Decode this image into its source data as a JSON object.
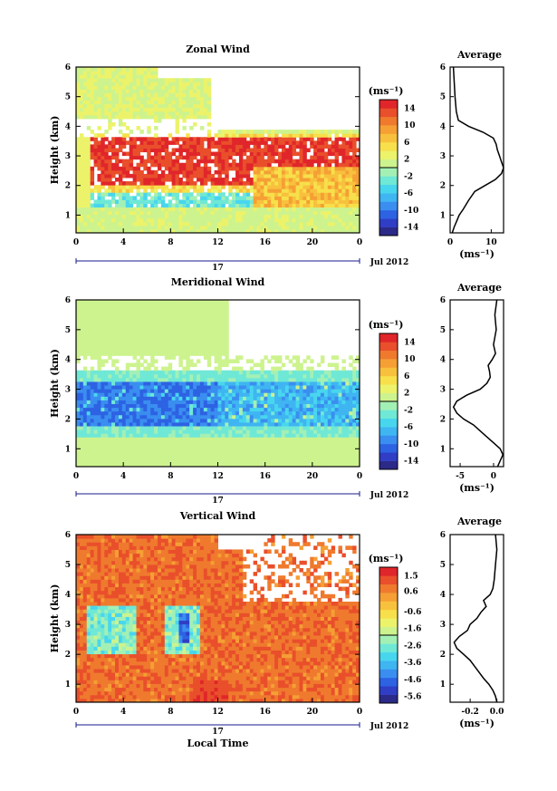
{
  "chart_data": [
    {
      "type": "heatmap",
      "title": "Zonal Wind",
      "ylabel": "Height (km)",
      "xlim": [
        0,
        24
      ],
      "ylim": [
        0.4,
        6.0
      ],
      "x_ticks": [
        "0",
        "4",
        "8",
        "12",
        "16",
        "20",
        "0"
      ],
      "y_ticks": [
        "1",
        "2",
        "3",
        "4",
        "5",
        "6"
      ],
      "day_label": "17",
      "date_label": "Jul 2012",
      "colorbar": {
        "unit": "(ms⁻¹)",
        "range": [
          -16,
          16
        ],
        "tick_labels": [
          "14",
          "10",
          "6",
          "2",
          "-2",
          "-6",
          "-10",
          "-14"
        ],
        "tick_values": [
          14,
          10,
          6,
          2,
          -2,
          -6,
          -10,
          -14
        ]
      },
      "profile": {
        "title": "Average",
        "xlabel": "(ms⁻¹)",
        "xlim": [
          0,
          13
        ],
        "x_ticks": [
          "0",
          "10"
        ],
        "x_tick_values": [
          0,
          10
        ],
        "height_km": [
          0.4,
          0.6,
          0.8,
          1.0,
          1.2,
          1.5,
          1.8,
          2.0,
          2.2,
          2.4,
          2.6,
          2.8,
          3.0,
          3.2,
          3.4,
          3.6,
          3.8,
          4.0,
          4.2,
          4.5,
          5.0,
          5.5,
          6.0
        ],
        "values": [
          0.5,
          1.0,
          1.6,
          2.2,
          3.2,
          4.5,
          6.0,
          8.5,
          11.0,
          12.5,
          13.0,
          12.5,
          12.0,
          11.5,
          11.2,
          10.5,
          8.0,
          4.5,
          2.0,
          1.5,
          1.2,
          1.0,
          0.8
        ]
      }
    },
    {
      "type": "heatmap",
      "title": "Meridional Wind",
      "ylabel": "Height (km)",
      "xlim": [
        0,
        24
      ],
      "ylim": [
        0.4,
        6.0
      ],
      "x_ticks": [
        "0",
        "4",
        "8",
        "12",
        "16",
        "20",
        "0"
      ],
      "y_ticks": [
        "1",
        "2",
        "3",
        "4",
        "5",
        "6"
      ],
      "day_label": "17",
      "date_label": "Jul 2012",
      "colorbar": {
        "unit": "(ms⁻¹)",
        "range": [
          -16,
          16
        ],
        "tick_labels": [
          "14",
          "10",
          "6",
          "2",
          "-2",
          "-6",
          "-10",
          "-14"
        ],
        "tick_values": [
          14,
          10,
          6,
          2,
          -2,
          -6,
          -10,
          -14
        ]
      },
      "profile": {
        "title": "Average",
        "xlabel": "(ms⁻¹)",
        "xlim": [
          -6.5,
          1.5
        ],
        "x_ticks": [
          "-5",
          "0"
        ],
        "x_tick_values": [
          -5,
          0
        ],
        "height_km": [
          0.4,
          0.6,
          0.8,
          1.0,
          1.2,
          1.5,
          1.8,
          2.0,
          2.2,
          2.4,
          2.6,
          2.8,
          3.0,
          3.2,
          3.4,
          3.6,
          3.8,
          4.0,
          4.2,
          4.5,
          5.0,
          5.5,
          6.0
        ],
        "values": [
          0.6,
          1.0,
          1.4,
          1.0,
          0.0,
          -1.5,
          -3.0,
          -4.5,
          -5.5,
          -6.0,
          -5.5,
          -4.0,
          -2.0,
          -1.0,
          -0.5,
          -0.6,
          -0.8,
          -0.2,
          0.3,
          0.0,
          0.4,
          0.2,
          0.5
        ]
      }
    },
    {
      "type": "heatmap",
      "title": "Vertical Wind",
      "ylabel": "Height (km)",
      "xlabel": "Local Time",
      "xlim": [
        0,
        24
      ],
      "ylim": [
        0.4,
        6.0
      ],
      "x_ticks": [
        "0",
        "4",
        "8",
        "12",
        "16",
        "20",
        "0"
      ],
      "y_ticks": [
        "1",
        "2",
        "3",
        "4",
        "5",
        "6"
      ],
      "day_label": "17",
      "date_label": "Jul 2012",
      "colorbar": {
        "unit": "(ms⁻¹)",
        "range": [
          -6,
          2
        ],
        "tick_labels": [
          "1.5",
          "0.6",
          "-0.6",
          "-1.6",
          "-2.6",
          "-3.6",
          "-4.6",
          "-5.6"
        ],
        "tick_values": [
          1.5,
          0.6,
          -0.6,
          -1.6,
          -2.6,
          -3.6,
          -4.6,
          -5.6
        ]
      },
      "profile": {
        "title": "Average",
        "xlabel": "(ms⁻¹)",
        "xlim": [
          -0.35,
          0.05
        ],
        "x_ticks": [
          "-0.2",
          "0.0"
        ],
        "x_tick_values": [
          -0.2,
          0.0
        ],
        "height_km": [
          0.4,
          0.6,
          0.8,
          1.0,
          1.2,
          1.5,
          1.8,
          2.0,
          2.2,
          2.4,
          2.6,
          2.8,
          3.0,
          3.2,
          3.4,
          3.6,
          3.8,
          4.0,
          4.2,
          4.5,
          5.0,
          5.5,
          6.0
        ],
        "values": [
          0.0,
          -0.01,
          -0.03,
          -0.06,
          -0.1,
          -0.15,
          -0.2,
          -0.25,
          -0.3,
          -0.32,
          -0.28,
          -0.22,
          -0.2,
          -0.15,
          -0.12,
          -0.08,
          -0.1,
          -0.05,
          -0.03,
          -0.02,
          -0.01,
          0.0,
          -0.01
        ]
      }
    }
  ]
}
